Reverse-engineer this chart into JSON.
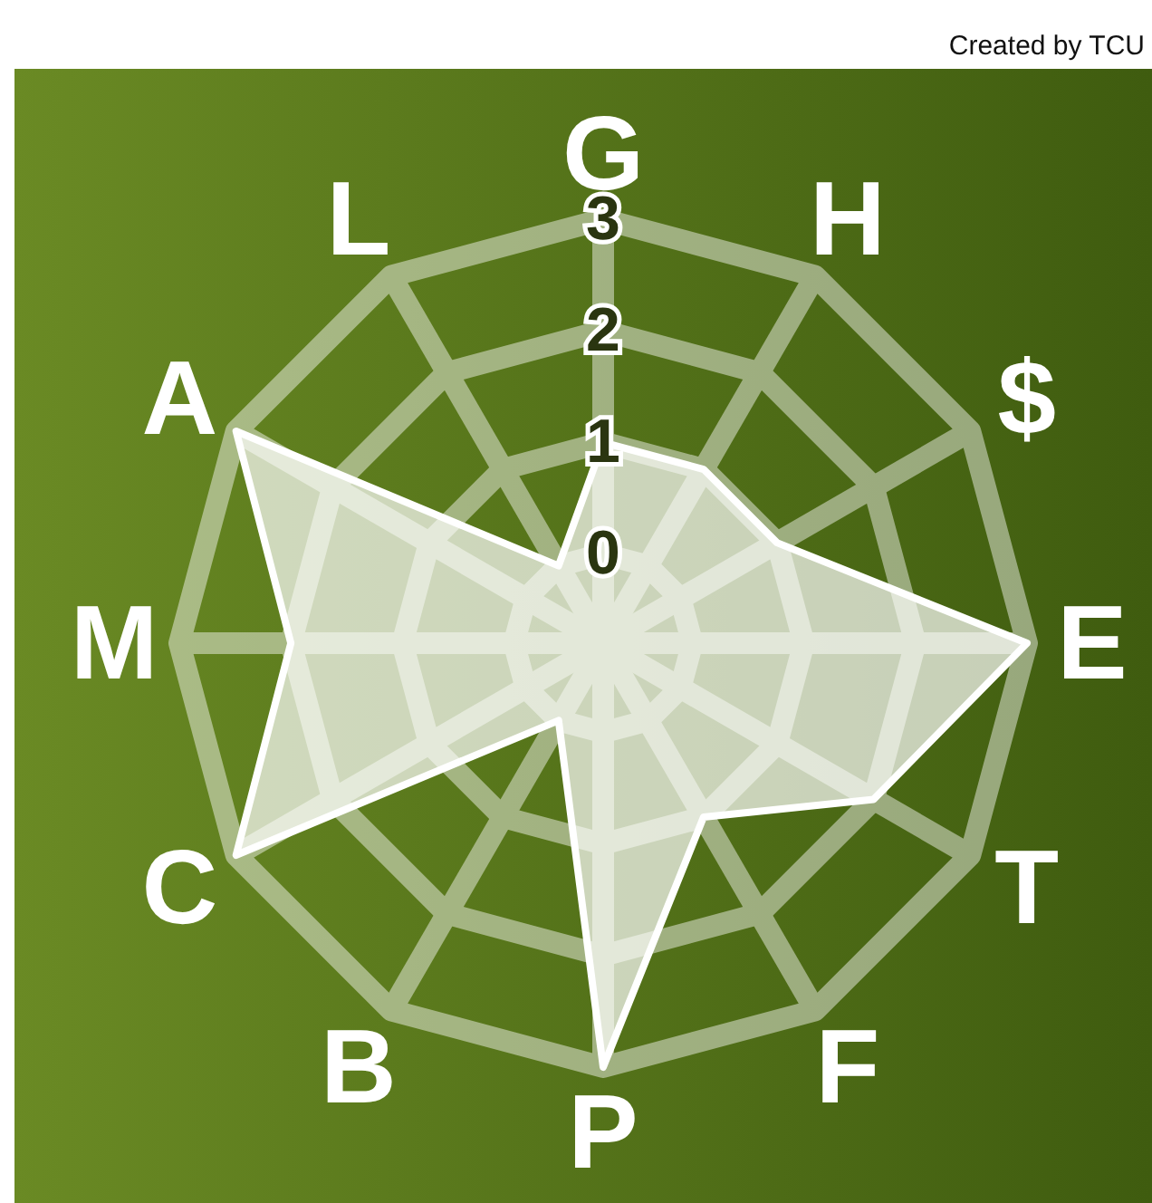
{
  "chart_data": {
    "type": "radar",
    "annotations": [
      "Created by TCU"
    ],
    "categories": [
      "G",
      "H",
      "$",
      "E",
      "T",
      "F",
      "P",
      "B",
      "C",
      "M",
      "A",
      "L"
    ],
    "series": [
      {
        "color": "#ffffff",
        "values": [
          1,
          1,
          1,
          3,
          2,
          1,
          3,
          0,
          3,
          2,
          3,
          0
        ]
      }
    ],
    "ylim": [
      -0.8,
      3
    ],
    "yticks": [
      0,
      1,
      2,
      3
    ],
    "grid": true
  }
}
